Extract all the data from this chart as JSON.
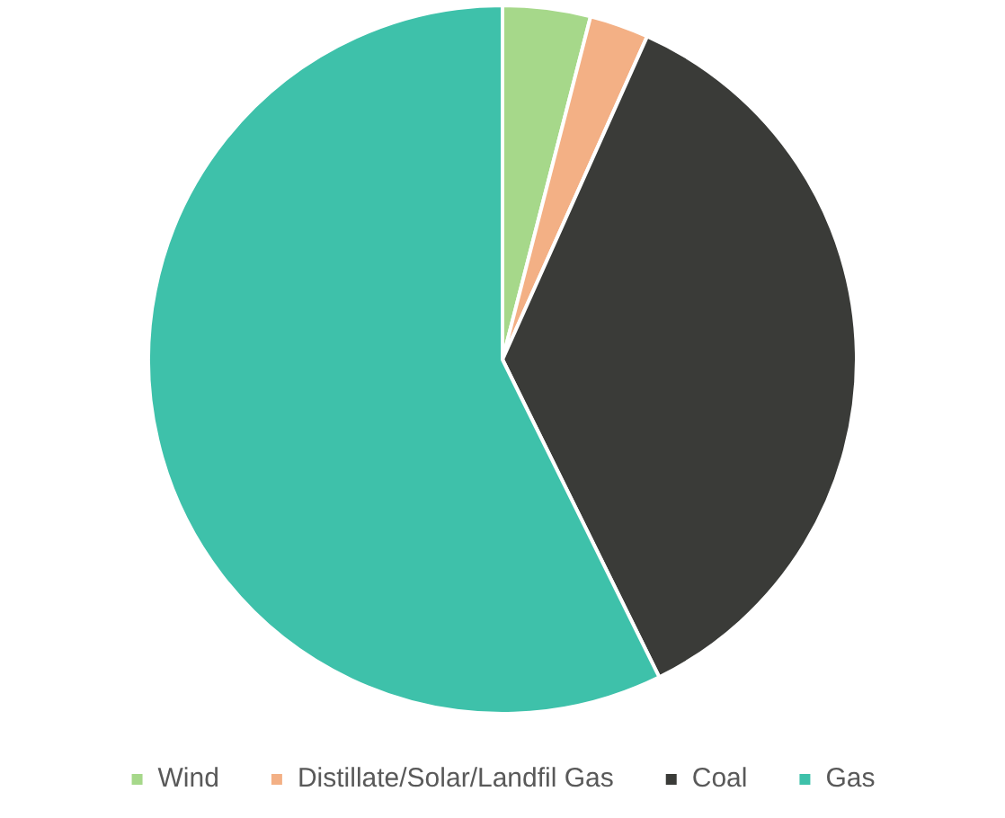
{
  "chart_data": {
    "type": "pie",
    "categories": [
      "Wind",
      "Distillate/Solar/Landfil Gas",
      "Coal",
      "Gas"
    ],
    "values": [
      4,
      2.7,
      36,
      57.3
    ],
    "colors": [
      "#a6d88a",
      "#f3b085",
      "#3a3b38",
      "#3ec1aa"
    ],
    "legend": "bottom"
  }
}
